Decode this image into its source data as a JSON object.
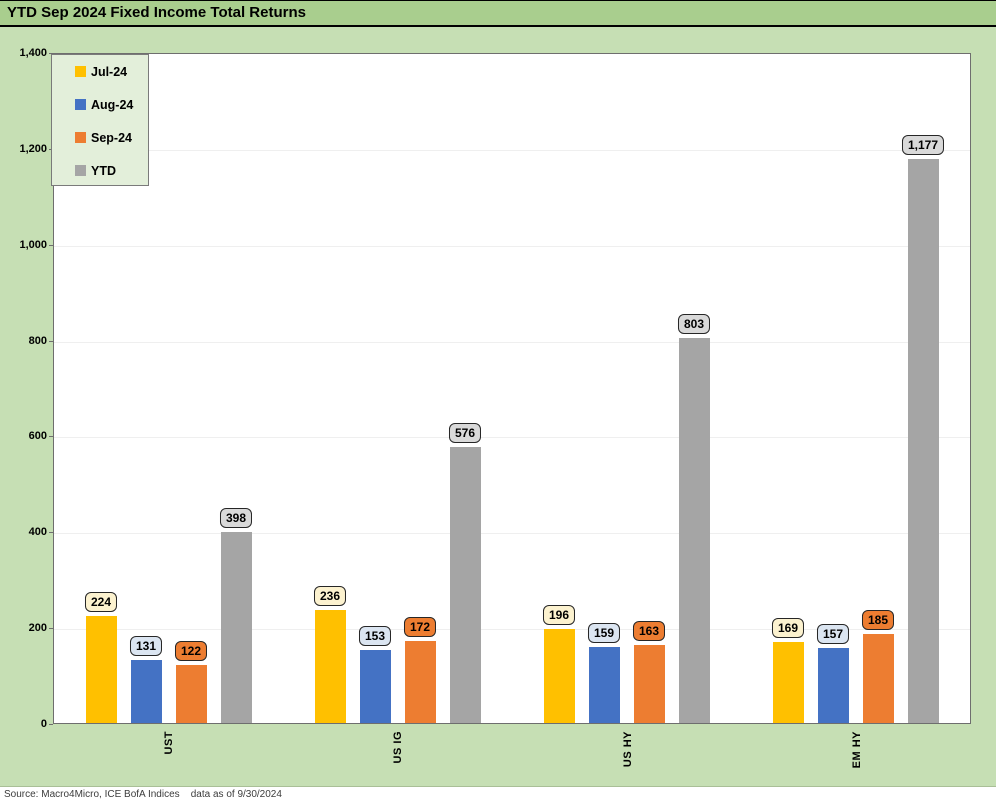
{
  "window": {
    "title": "YTD Sep 2024 Fixed Income Total Returns"
  },
  "source_note": "Source: Macro4Micro, ICE BofA Indices    data as of 9/30/2024",
  "colors": {
    "title_band_bg": "#a9ce8e",
    "chart_bg": "#c6dfb4",
    "legend_bg": "#e3efda",
    "plot_bg": "#ffffff",
    "plot_border": "#6e6e6e",
    "gridline": "#efefef",
    "label_border": "#262626"
  },
  "chart_data": {
    "type": "bar",
    "title": "YTD Sep 2024 Fixed Income Total Returns",
    "categories": [
      "UST",
      "US IG",
      "US HY",
      "EM HY"
    ],
    "series": [
      {
        "name": "Jul-24",
        "color": "#ffc000",
        "label_fill": "#fcf2cf",
        "values": [
          224,
          236,
          196,
          169
        ]
      },
      {
        "name": "Aug-24",
        "color": "#4472c4",
        "label_fill": "#dbe5f1",
        "values": [
          131,
          153,
          159,
          157
        ]
      },
      {
        "name": "Sep-24",
        "color": "#ed7d31",
        "label_fill": "#ed7d31",
        "values": [
          122,
          172,
          163,
          185
        ]
      },
      {
        "name": "YTD",
        "color": "#a5a5a5",
        "label_fill": "#d9d9d9",
        "values": [
          398,
          576,
          803,
          1177
        ]
      }
    ],
    "value_labels": [
      "224",
      "131",
      "122",
      "398",
      "236",
      "153",
      "172",
      "576",
      "196",
      "159",
      "163",
      "803",
      "169",
      "157",
      "185",
      "1,177"
    ],
    "xlabel": "",
    "ylabel": "",
    "ylim": [
      0,
      1400
    ],
    "yticks": [
      0,
      200,
      400,
      600,
      800,
      1000,
      1200,
      1400
    ],
    "grid": true,
    "legend_position": "top-left"
  }
}
